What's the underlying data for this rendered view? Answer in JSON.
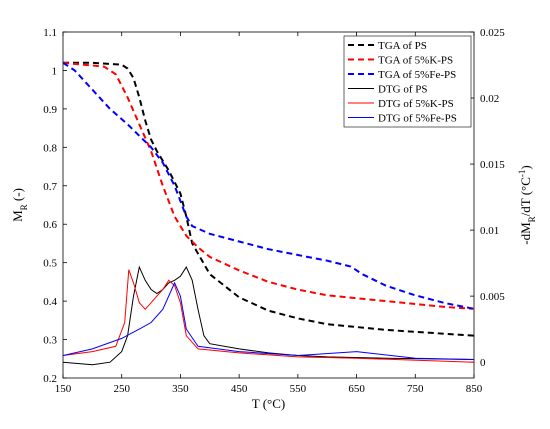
{
  "chart_data": {
    "type": "line",
    "xlabel": "T (°C)",
    "ylabel": [
      "M",
      "R",
      " (-)"
    ],
    "y2label": [
      "-dM",
      "R",
      "/dT (°C",
      "-1",
      ")"
    ],
    "xlim": [
      150,
      850
    ],
    "xticks": [
      150,
      250,
      350,
      450,
      550,
      650,
      750,
      850
    ],
    "ylim": [
      0.2,
      1.1
    ],
    "yticks": [
      0.2,
      0.3,
      0.4,
      0.5,
      0.6,
      0.7,
      0.8,
      0.9,
      1,
      1.1
    ],
    "y2lim": [
      -0.0012,
      0.025
    ],
    "y2ticks": [
      0,
      0.005,
      0.01,
      0.015,
      0.02,
      0.025
    ],
    "legend": "upper right",
    "series": [
      {
        "name": "TGA of PS",
        "color": "#000000",
        "dash": true,
        "axis": "y",
        "x": [
          150,
          200,
          250,
          260,
          270,
          280,
          290,
          300,
          310,
          330,
          350,
          360,
          370,
          400,
          450,
          500,
          550,
          600,
          700,
          850
        ],
        "values": [
          1.02,
          1.02,
          1.015,
          1.005,
          0.98,
          0.93,
          0.87,
          0.82,
          0.79,
          0.74,
          0.68,
          0.62,
          0.55,
          0.47,
          0.41,
          0.375,
          0.355,
          0.34,
          0.325,
          0.31
        ]
      },
      {
        "name": "TGA of 5%K-PS",
        "color": "#ff0000",
        "dash": true,
        "axis": "y",
        "x": [
          150,
          220,
          240,
          260,
          280,
          300,
          320,
          340,
          360,
          380,
          400,
          450,
          500,
          550,
          600,
          700,
          800,
          850
        ],
        "values": [
          1.02,
          1.01,
          0.99,
          0.93,
          0.86,
          0.79,
          0.7,
          0.62,
          0.57,
          0.54,
          0.515,
          0.48,
          0.45,
          0.43,
          0.415,
          0.4,
          0.385,
          0.38
        ]
      },
      {
        "name": "TGA of 5%Fe-PS",
        "color": "#0000ff",
        "dash": true,
        "axis": "y",
        "x": [
          150,
          170,
          200,
          230,
          260,
          280,
          300,
          320,
          340,
          360,
          370,
          400,
          450,
          500,
          550,
          600,
          640,
          660,
          700,
          750,
          800,
          850
        ],
        "values": [
          1.02,
          1.0,
          0.95,
          0.9,
          0.86,
          0.83,
          0.8,
          0.76,
          0.7,
          0.62,
          0.595,
          0.575,
          0.555,
          0.535,
          0.52,
          0.505,
          0.49,
          0.47,
          0.44,
          0.415,
          0.395,
          0.38
        ]
      },
      {
        "name": "DTG of PS",
        "color": "#000000",
        "dash": false,
        "axis": "y2",
        "x": [
          150,
          200,
          230,
          250,
          260,
          270,
          280,
          290,
          300,
          310,
          320,
          330,
          340,
          350,
          360,
          370,
          380,
          390,
          400,
          450,
          500,
          550,
          600,
          700,
          850
        ],
        "values": [
          0.0,
          -0.0002,
          0.0,
          0.0008,
          0.002,
          0.005,
          0.0072,
          0.0062,
          0.0055,
          0.0052,
          0.0055,
          0.006,
          0.0062,
          0.0065,
          0.0072,
          0.0062,
          0.004,
          0.002,
          0.0014,
          0.001,
          0.0007,
          0.0005,
          0.0004,
          0.0003,
          0.0002
        ]
      },
      {
        "name": "DTG of 5%K-PS",
        "color": "#ff0000",
        "dash": false,
        "axis": "y2",
        "x": [
          150,
          200,
          240,
          255,
          262,
          270,
          280,
          290,
          300,
          310,
          320,
          330,
          340,
          350,
          360,
          380,
          450,
          550,
          650,
          850
        ],
        "values": [
          0.0005,
          0.0008,
          0.0012,
          0.003,
          0.007,
          0.006,
          0.0045,
          0.004,
          0.0045,
          0.005,
          0.0055,
          0.0062,
          0.0058,
          0.0045,
          0.002,
          0.001,
          0.0007,
          0.0004,
          0.0003,
          0.0
        ]
      },
      {
        "name": "DTG of 5%Fe-PS",
        "color": "#0000ff",
        "dash": false,
        "axis": "y2",
        "x": [
          150,
          200,
          250,
          280,
          300,
          320,
          340,
          350,
          360,
          380,
          450,
          550,
          650,
          750,
          850
        ],
        "values": [
          0.0005,
          0.001,
          0.0018,
          0.0025,
          0.003,
          0.004,
          0.006,
          0.005,
          0.0025,
          0.0012,
          0.0008,
          0.0005,
          0.0008,
          0.0003,
          0.0002
        ]
      }
    ]
  }
}
